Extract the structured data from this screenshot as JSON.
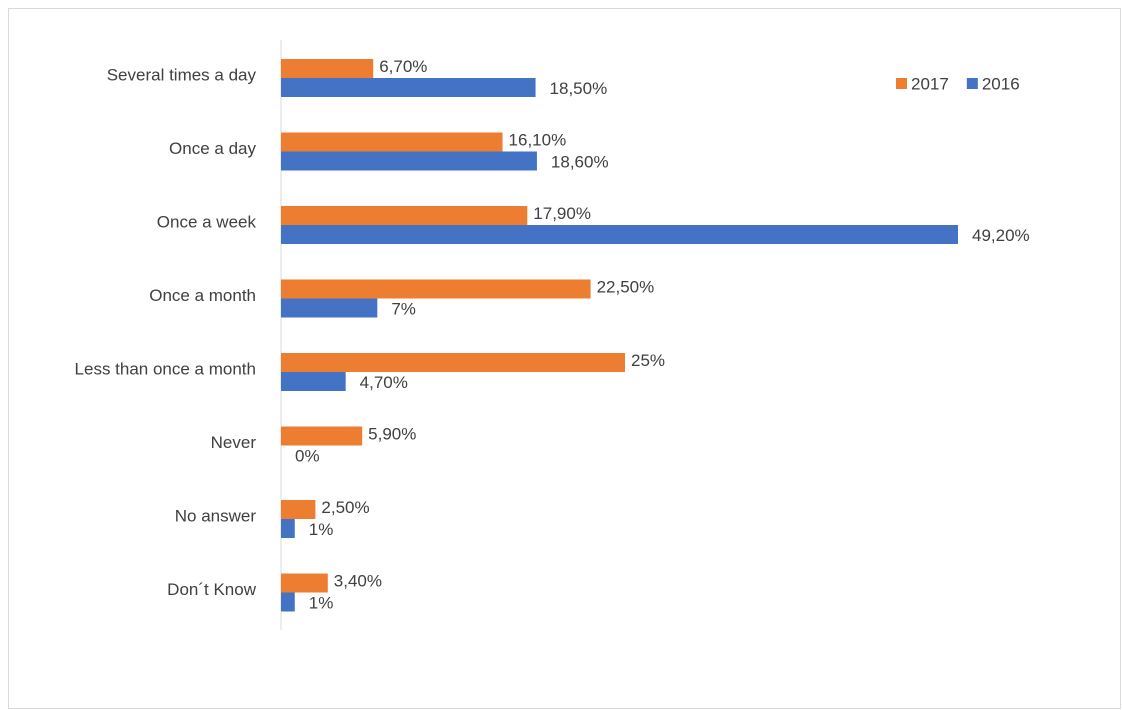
{
  "chart_data": {
    "type": "bar",
    "orientation": "horizontal",
    "categories": [
      "Several times a day",
      "Once a day",
      "Once a week",
      "Once a month",
      "Less than once a month",
      "Never",
      "No answer",
      "Don´t Know"
    ],
    "series": [
      {
        "name": "2017",
        "color": "#ed7d31",
        "values": [
          6.7,
          16.1,
          17.9,
          22.5,
          25,
          5.9,
          2.5,
          3.4
        ],
        "value_labels": [
          "6,70%",
          "16,10%",
          "17,90%",
          "22,50%",
          "25%",
          "5,90%",
          "2,50%",
          "3,40%"
        ]
      },
      {
        "name": "2016",
        "color": "#4472c4",
        "values": [
          18.5,
          18.6,
          49.2,
          7,
          4.7,
          0,
          1,
          1
        ],
        "value_labels": [
          "18,50%",
          "18,60%",
          "49,20%",
          "7%",
          "4,70%",
          "0%",
          "1%",
          "1%"
        ]
      }
    ],
    "legend": "top-right"
  }
}
